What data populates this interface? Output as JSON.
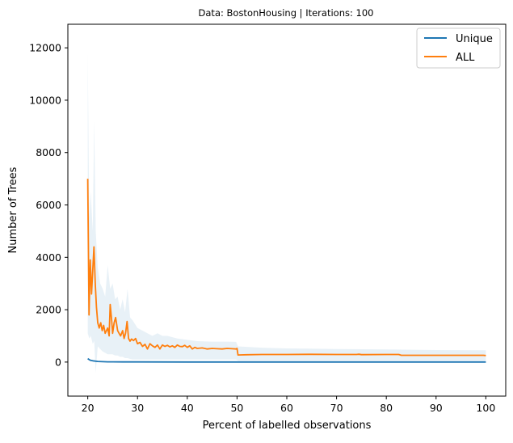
{
  "chart_data": {
    "type": "line",
    "title": "Data: BostonHousing | Iterations: 100",
    "xlabel": "Percent of labelled observations",
    "ylabel": "Number of Trees",
    "xlim": [
      16.0,
      104.0
    ],
    "ylim": [
      -1300,
      12900
    ],
    "xticks": [
      20,
      30,
      40,
      50,
      60,
      70,
      80,
      90,
      100
    ],
    "yticks": [
      0,
      2000,
      4000,
      6000,
      8000,
      10000,
      12000
    ],
    "legend_position": "top-right",
    "grid": false,
    "series": [
      {
        "name": "Unique",
        "color": "#1f77b4",
        "x": [
          20,
          20.5,
          21,
          22,
          23,
          24,
          25,
          27,
          30,
          40,
          50,
          60,
          70,
          80,
          90,
          100
        ],
        "y": [
          130,
          70,
          50,
          25,
          15,
          10,
          8,
          6,
          5,
          4,
          3,
          3,
          3,
          3,
          3,
          3
        ]
      },
      {
        "name": "ALL",
        "color": "#ff7f0e",
        "x": [
          20.0,
          20.25,
          20.5,
          20.75,
          21.0,
          21.25,
          21.5,
          21.75,
          22.0,
          22.3,
          22.6,
          22.9,
          23.2,
          23.5,
          24.0,
          24.3,
          24.5,
          24.8,
          25.0,
          25.3,
          25.6,
          26.0,
          26.3,
          26.6,
          27.0,
          27.3,
          27.6,
          27.9,
          28.2,
          28.5,
          28.8,
          29.2,
          29.6,
          30.0,
          30.5,
          31.0,
          31.5,
          32.0,
          32.5,
          33.0,
          33.5,
          34.0,
          34.5,
          35.0,
          35.5,
          36.0,
          36.5,
          37.0,
          37.5,
          38.0,
          38.5,
          39.0,
          39.5,
          40.0,
          40.5,
          41.0,
          41.5,
          42.0,
          43.0,
          44.0,
          45.0,
          46.0,
          47.0,
          48.0,
          49.0,
          49.8,
          50.0,
          50.2,
          52.0,
          55.0,
          60.0,
          65.0,
          70.0,
          74.0,
          74.5,
          75.0,
          80.0,
          82.5,
          83.0,
          85.0,
          90.0,
          95.0,
          99.5,
          100.0
        ],
        "y": [
          7000,
          1800,
          3900,
          2600,
          3500,
          4400,
          3000,
          2100,
          1500,
          1300,
          1500,
          1200,
          1400,
          1100,
          1300,
          1000,
          2200,
          1600,
          1100,
          1500,
          1700,
          1200,
          1100,
          1000,
          1200,
          900,
          1100,
          1550,
          900,
          800,
          880,
          820,
          900,
          700,
          750,
          600,
          680,
          500,
          700,
          620,
          560,
          650,
          500,
          650,
          600,
          640,
          580,
          620,
          560,
          650,
          600,
          590,
          640,
          560,
          620,
          500,
          560,
          520,
          540,
          500,
          520,
          510,
          500,
          520,
          510,
          500,
          520,
          270,
          280,
          290,
          290,
          295,
          290,
          290,
          300,
          285,
          290,
          290,
          260,
          260,
          260,
          260,
          260,
          250
        ]
      }
    ],
    "band": {
      "color": "#1f77b4",
      "opacity": 0.1,
      "x": [
        20.0,
        20.3,
        20.6,
        21.0,
        21.3,
        21.6,
        22.0,
        22.5,
        23.0,
        23.5,
        24.0,
        24.5,
        25.0,
        25.5,
        26.0,
        26.5,
        27.0,
        27.5,
        28.0,
        28.5,
        29.0,
        30.0,
        31.0,
        32.0,
        33.0,
        34.0,
        35.0,
        36.0,
        38.0,
        40.0,
        42.0,
        45.0,
        48.0,
        49.8,
        50.2,
        55.0,
        60.0,
        70.0,
        80.0,
        90.0,
        100.0
      ],
      "upper": [
        11800,
        5500,
        6500,
        5000,
        9200,
        5000,
        3600,
        3000,
        2800,
        2500,
        3700,
        2800,
        3000,
        2400,
        2500,
        2000,
        2400,
        1900,
        2800,
        1700,
        1600,
        1300,
        1200,
        1100,
        1000,
        1100,
        1000,
        1000,
        900,
        850,
        800,
        780,
        780,
        770,
        600,
        550,
        520,
        500,
        480,
        460,
        450
      ],
      "lower": [
        1100,
        900,
        1000,
        700,
        800,
        -400,
        600,
        500,
        400,
        350,
        300,
        300,
        300,
        250,
        250,
        200,
        200,
        150,
        150,
        120,
        100,
        100,
        100,
        100,
        100,
        100,
        100,
        100,
        100,
        100,
        100,
        100,
        100,
        100,
        50,
        50,
        50,
        50,
        50,
        50,
        50
      ]
    }
  }
}
